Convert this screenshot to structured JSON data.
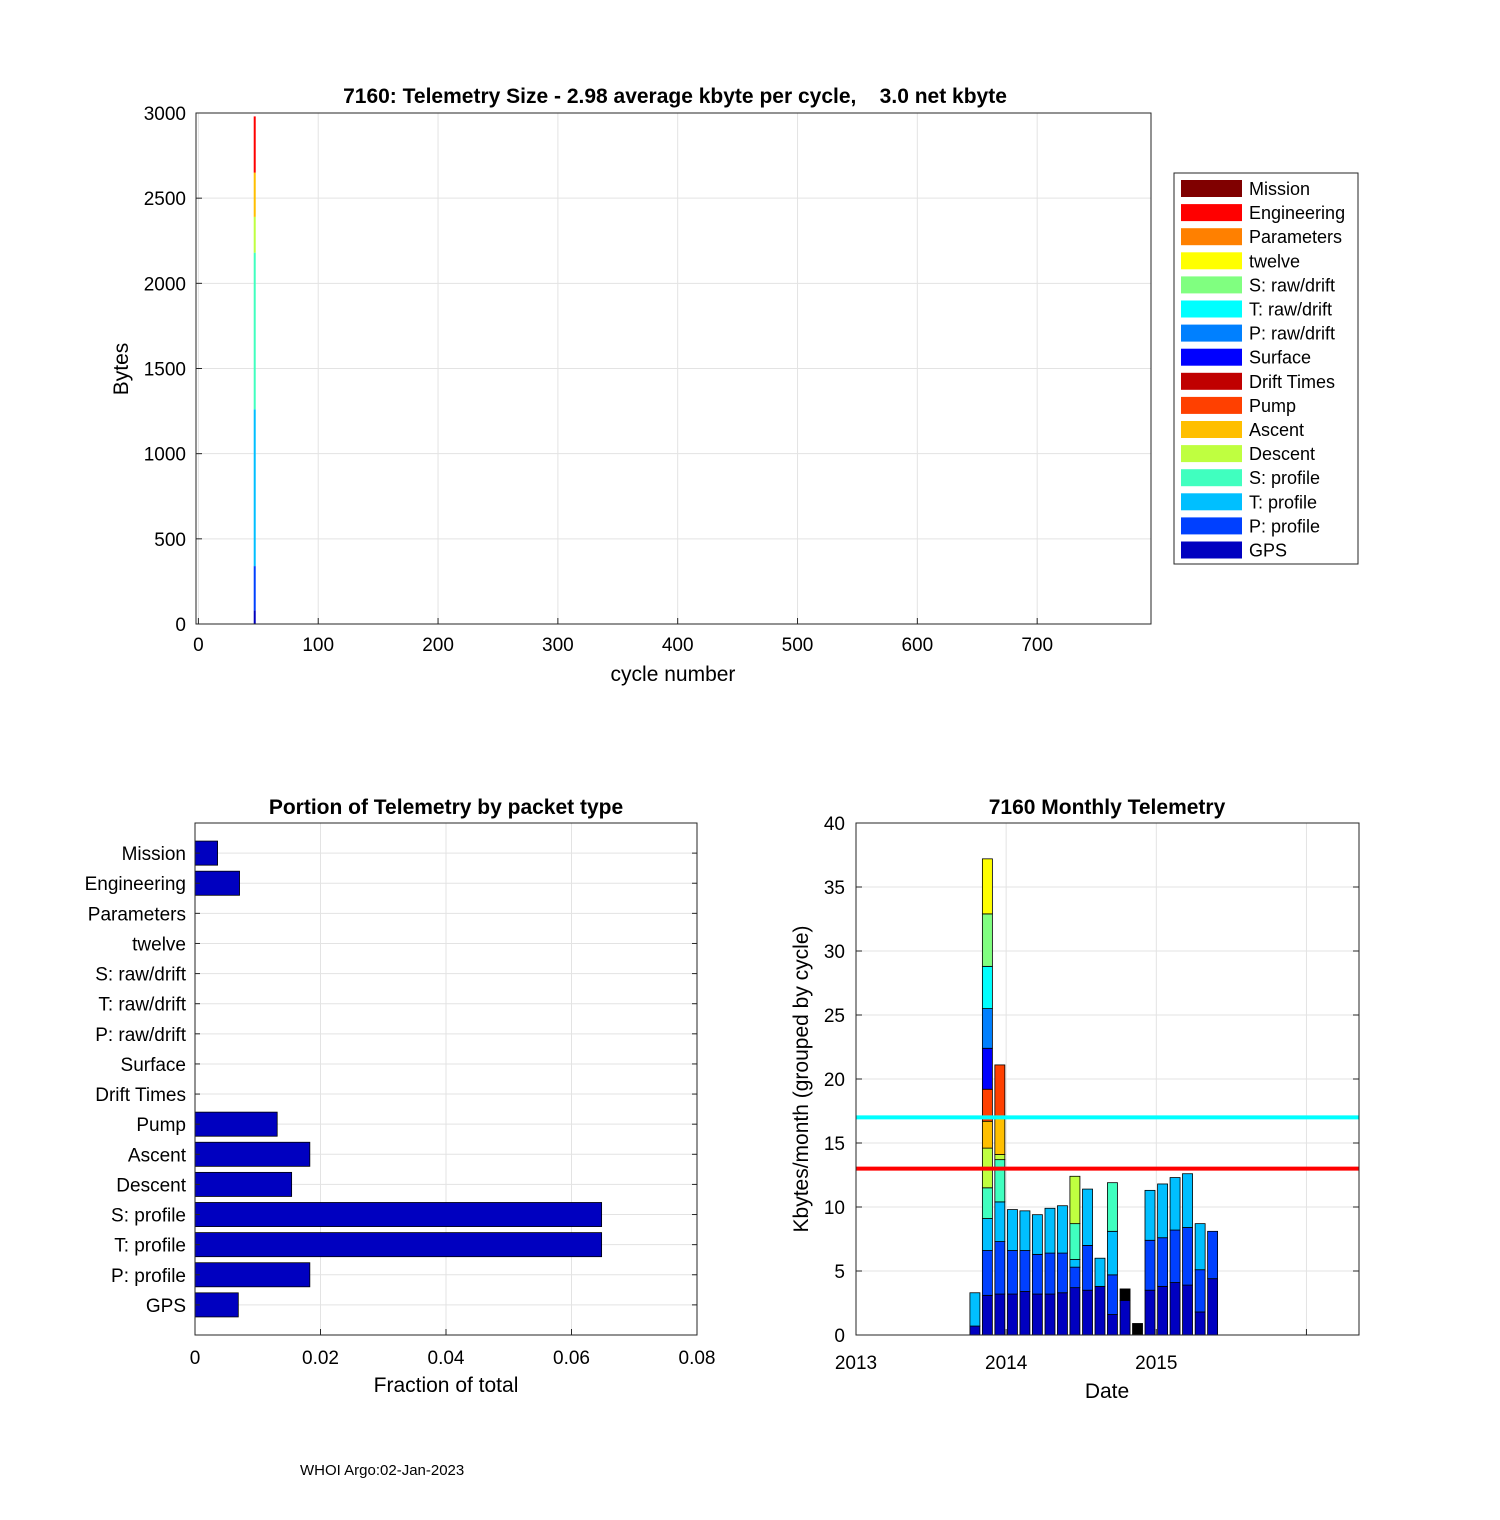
{
  "chart_data": [
    {
      "type": "bar",
      "title": "7160: Telemetry Size - 2.98 average kbyte per cycle,    3.0 net kbyte",
      "xlabel": "cycle number",
      "ylabel": "Bytes",
      "xlim": [
        -2,
        795
      ],
      "ylim": [
        0,
        3000
      ],
      "xticks": [
        0,
        100,
        200,
        300,
        400,
        500,
        600,
        700
      ],
      "yticks": [
        0,
        500,
        1000,
        1500,
        2000,
        2500,
        3000
      ],
      "stack_cycle": 47,
      "stack_segments": [
        {
          "name": "GPS",
          "value": 80
        },
        {
          "name": "P: profile",
          "value": 260
        },
        {
          "name": "T: profile",
          "value": 920
        },
        {
          "name": "S: profile",
          "value": 920
        },
        {
          "name": "Descent",
          "value": 210
        },
        {
          "name": "Ascent",
          "value": 260
        },
        {
          "name": "Pump",
          "value": 0
        },
        {
          "name": "Engineering",
          "value": 330
        }
      ],
      "legend": [
        {
          "name": "Mission",
          "color": "#800000"
        },
        {
          "name": "Engineering",
          "color": "#ff0000"
        },
        {
          "name": "Parameters",
          "color": "#ff8000"
        },
        {
          "name": "twelve",
          "color": "#ffff00"
        },
        {
          "name": "S: raw/drift",
          "color": "#80ff80"
        },
        {
          "name": "T: raw/drift",
          "color": "#00ffff"
        },
        {
          "name": "P: raw/drift",
          "color": "#0080ff"
        },
        {
          "name": "Surface",
          "color": "#0000ff"
        },
        {
          "name": "Drift Times",
          "color": "#c00000"
        },
        {
          "name": "Pump",
          "color": "#ff4000"
        },
        {
          "name": "Ascent",
          "color": "#ffbf00"
        },
        {
          "name": "Descent",
          "color": "#bfff40"
        },
        {
          "name": "S: profile",
          "color": "#40ffbf"
        },
        {
          "name": "T: profile",
          "color": "#00bfff"
        },
        {
          "name": "P: profile",
          "color": "#0040ff"
        },
        {
          "name": "GPS",
          "color": "#0000c0"
        }
      ]
    },
    {
      "type": "bar",
      "orientation": "horizontal",
      "title": "Portion of Telemetry by packet type",
      "xlabel": "Fraction of total",
      "xlim": [
        0,
        0.08
      ],
      "xticks": [
        0,
        0.02,
        0.04,
        0.06,
        0.08
      ],
      "xtick_labels": [
        "0",
        "0.02",
        "0.04",
        "0.06",
        "0.08"
      ],
      "categories": [
        "Mission",
        "Engineering",
        "Parameters",
        "twelve",
        "S: raw/drift",
        "T: raw/drift",
        "P: raw/drift",
        "Surface",
        "Drift Times",
        "Pump",
        "Ascent",
        "Descent",
        "S: profile",
        "T: profile",
        "P: profile",
        "GPS"
      ],
      "values": [
        0.0036,
        0.0071,
        0,
        0,
        0,
        0,
        0,
        0,
        0,
        0.0131,
        0.0183,
        0.0154,
        0.0648,
        0.0648,
        0.0183,
        0.0069
      ],
      "bar_color": "#0000c0"
    },
    {
      "type": "bar",
      "stacked": true,
      "title": "7160 Monthly Telemetry",
      "xlabel": "Date",
      "ylabel": "Kbytes/month (grouped by cycle)",
      "xlim": [
        2013.0,
        2016.35
      ],
      "ylim": [
        0,
        40
      ],
      "xticks": [
        2013,
        2014,
        2015,
        2016
      ],
      "xtick_labels": [
        "2013",
        "2014",
        "2015",
        ""
      ],
      "yticks": [
        0,
        5,
        10,
        15,
        20,
        25,
        30,
        35,
        40
      ],
      "hlines": [
        {
          "value": 17,
          "color": "#00ffff"
        },
        {
          "value": 13,
          "color": "#ff0000"
        }
      ],
      "months": [
        {
          "x": 2013.792,
          "segments": [
            [
              "#0000c0",
              0.7
            ],
            [
              "#0040ff",
              0
            ],
            [
              "#00bfff",
              2.6
            ]
          ]
        },
        {
          "x": 2013.875,
          "segments": [
            [
              "#0000c0",
              3.1
            ],
            [
              "#0040ff",
              3.5
            ],
            [
              "#00bfff",
              2.5
            ],
            [
              "#40ffbf",
              2.4
            ],
            [
              "#bfff40",
              3.1
            ],
            [
              "#ffbf00",
              2.1
            ],
            [
              "#ff4000",
              2.5
            ],
            [
              "#0000ff",
              3.2
            ],
            [
              "#0080ff",
              3.1
            ],
            [
              "#00ffff",
              3.3
            ],
            [
              "#80ff80",
              4.1
            ],
            [
              "#ffff00",
              4.3
            ]
          ]
        },
        {
          "x": 2013.958,
          "segments": [
            [
              "#0000c0",
              3.2
            ],
            [
              "#0040ff",
              4.1
            ],
            [
              "#00bfff",
              3.1
            ],
            [
              "#40ffbf",
              3.3
            ],
            [
              "#bfff40",
              0.4
            ],
            [
              "#ffbf00",
              3.0
            ],
            [
              "#ff4000",
              4.0
            ]
          ]
        },
        {
          "x": 2014.042,
          "segments": [
            [
              "#0000c0",
              3.2
            ],
            [
              "#0040ff",
              3.4
            ],
            [
              "#00bfff",
              3.2
            ]
          ]
        },
        {
          "x": 2014.125,
          "segments": [
            [
              "#0000c0",
              3.4
            ],
            [
              "#0040ff",
              3.2
            ],
            [
              "#00bfff",
              3.1
            ]
          ]
        },
        {
          "x": 2014.208,
          "segments": [
            [
              "#0000c0",
              3.2
            ],
            [
              "#0040ff",
              3.1
            ],
            [
              "#00bfff",
              3.1
            ]
          ]
        },
        {
          "x": 2014.292,
          "segments": [
            [
              "#0000c0",
              3.2
            ],
            [
              "#0040ff",
              3.2
            ],
            [
              "#00bfff",
              3.5
            ]
          ]
        },
        {
          "x": 2014.375,
          "segments": [
            [
              "#0000c0",
              3.3
            ],
            [
              "#0040ff",
              3.1
            ],
            [
              "#00bfff",
              3.7
            ]
          ]
        },
        {
          "x": 2014.458,
          "segments": [
            [
              "#0000c0",
              3.7
            ],
            [
              "#0040ff",
              1.6
            ],
            [
              "#00bfff",
              0.6
            ],
            [
              "#40ffbf",
              2.8
            ],
            [
              "#bfff40",
              3.7
            ]
          ]
        },
        {
          "x": 2014.542,
          "segments": [
            [
              "#0000c0",
              3.5
            ],
            [
              "#0040ff",
              3.5
            ],
            [
              "#00bfff",
              4.4
            ]
          ]
        },
        {
          "x": 2014.625,
          "segments": [
            [
              "#0000c0",
              3.8
            ],
            [
              "#0040ff",
              0
            ],
            [
              "#00bfff",
              2.2
            ]
          ]
        },
        {
          "x": 2014.708,
          "segments": [
            [
              "#0000c0",
              1.6
            ],
            [
              "#0040ff",
              3.1
            ],
            [
              "#00bfff",
              3.4
            ],
            [
              "#40ffbf",
              3.8
            ]
          ]
        },
        {
          "x": 2014.792,
          "segments": [
            [
              "#0000c0",
              2.7
            ],
            [
              "#000000",
              0.9
            ]
          ]
        },
        {
          "x": 2014.875,
          "segments": [
            [
              "#000000",
              0.9
            ]
          ]
        },
        {
          "x": 2014.958,
          "segments": [
            [
              "#0000c0",
              3.5
            ],
            [
              "#0040ff",
              3.9
            ],
            [
              "#00bfff",
              3.9
            ]
          ]
        },
        {
          "x": 2015.042,
          "segments": [
            [
              "#0000c0",
              3.8
            ],
            [
              "#0040ff",
              3.8
            ],
            [
              "#00bfff",
              4.2
            ]
          ]
        },
        {
          "x": 2015.125,
          "segments": [
            [
              "#0000c0",
              4.1
            ],
            [
              "#0040ff",
              4.1
            ],
            [
              "#00bfff",
              4.1
            ]
          ]
        },
        {
          "x": 2015.208,
          "segments": [
            [
              "#0000c0",
              3.9
            ],
            [
              "#0040ff",
              4.5
            ],
            [
              "#00bfff",
              4.2
            ]
          ]
        },
        {
          "x": 2015.292,
          "segments": [
            [
              "#0000c0",
              1.8
            ],
            [
              "#0040ff",
              3.3
            ],
            [
              "#00bfff",
              3.6
            ]
          ]
        },
        {
          "x": 2015.375,
          "segments": [
            [
              "#0000c0",
              4.4
            ],
            [
              "#0040ff",
              3.7
            ]
          ]
        }
      ]
    }
  ],
  "footer": "WHOI Argo:02-Jan-2023"
}
